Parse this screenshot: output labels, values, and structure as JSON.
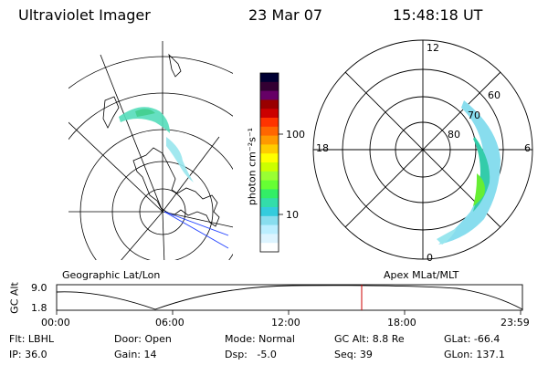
{
  "header": {
    "instrument": "Ultraviolet Imager",
    "date": "23 Mar 07",
    "time": "15:48:18 UT"
  },
  "colorbar": {
    "unit_label": "photon cm⁻²s⁻¹",
    "ticks": [
      "100",
      "10"
    ],
    "colors": [
      "#000033",
      "#330033",
      "#660066",
      "#990000",
      "#cc0000",
      "#ff3300",
      "#ff6600",
      "#ff9900",
      "#ffcc00",
      "#ffff00",
      "#ccff00",
      "#99ff33",
      "#66ff33",
      "#33ee66",
      "#33ddaa",
      "#33ccdd",
      "#88ddee",
      "#bbeeff",
      "#ddf4ff",
      "#ffffff"
    ]
  },
  "polar_plot": {
    "mlt_labels": {
      "top": "12",
      "left": "18",
      "right": "6",
      "bottom": "0"
    },
    "lat_labels": [
      "60",
      "70",
      "80"
    ]
  },
  "map_labels": {
    "left": "Geographic Lat/Lon",
    "right": "Apex MLat/MLT"
  },
  "orbit_plot": {
    "ylabel": "GC Alt",
    "yticks": [
      "9.0",
      "1.8"
    ],
    "xticks": [
      "00:00",
      "06:00",
      "12:00",
      "18:00",
      "23:59"
    ]
  },
  "info": {
    "flt": "Flt: LBHL",
    "ip": "IP: 36.0",
    "door": "Door: Open",
    "gain": "Gain: 14",
    "mode": "Mode: Normal",
    "dsp": "Dsp:   -5.0",
    "gcalt": "GC Alt: 8.8 Re",
    "seq": "Seq: 39",
    "glat": "GLat: -66.4",
    "glon": "GLon: 137.1"
  }
}
